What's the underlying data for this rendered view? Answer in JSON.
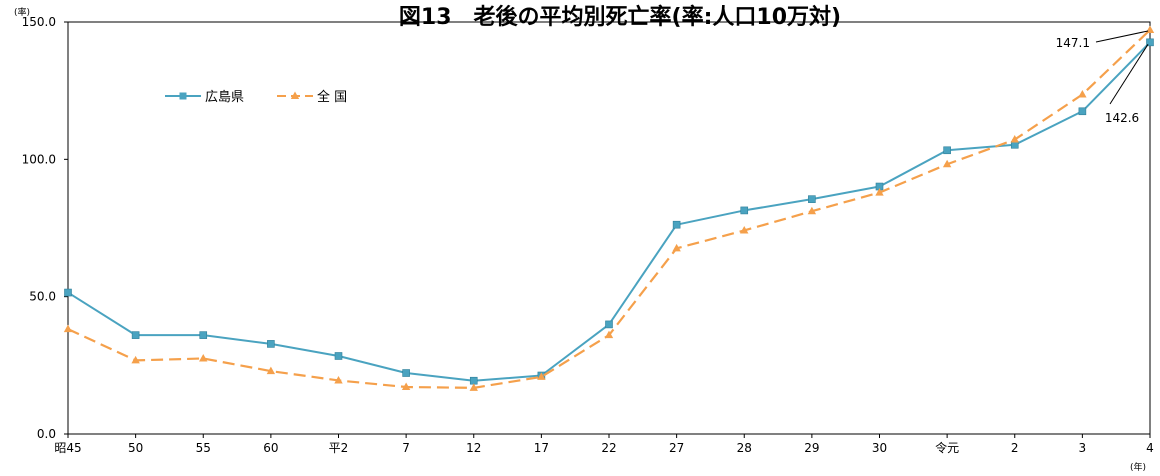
{
  "chart_data": {
    "type": "line",
    "title": "図13　老後の平均別死亡率(率:人口10万対)",
    "y_unit_label": "(率)",
    "x_unit_label": "(年)",
    "ylim": [
      0,
      150
    ],
    "yticks": [
      "0.0",
      "50.0",
      "100.0",
      "150.0"
    ],
    "categories": [
      "昭45",
      "50",
      "55",
      "60",
      "平2",
      "7",
      "12",
      "17",
      "22",
      "27",
      "28",
      "29",
      "30",
      "令元",
      "2",
      "3",
      "4"
    ],
    "grid": false,
    "legend_position": "top-left",
    "series": [
      {
        "name": "広島県",
        "color": "#4aa3c0",
        "style": "solid",
        "marker": "square",
        "values": [
          51.5,
          36.0,
          36.0,
          32.8,
          28.4,
          22.2,
          19.4,
          21.3,
          39.9,
          76.2,
          81.4,
          85.5,
          90.1,
          103.3,
          105.3,
          117.5,
          142.6
        ]
      },
      {
        "name": "全 国",
        "color": "#f5a04b",
        "style": "dashed",
        "marker": "triangle",
        "values": [
          38.2,
          26.8,
          27.5,
          22.9,
          19.5,
          17.1,
          16.8,
          20.8,
          36.0,
          67.6,
          74.1,
          81.1,
          87.9,
          98.2,
          107.2,
          123.6,
          147.1
        ]
      }
    ],
    "annotations": [
      {
        "text": "147.1",
        "series": 1,
        "index": 16
      },
      {
        "text": "142.6",
        "series": 0,
        "index": 16
      }
    ]
  }
}
